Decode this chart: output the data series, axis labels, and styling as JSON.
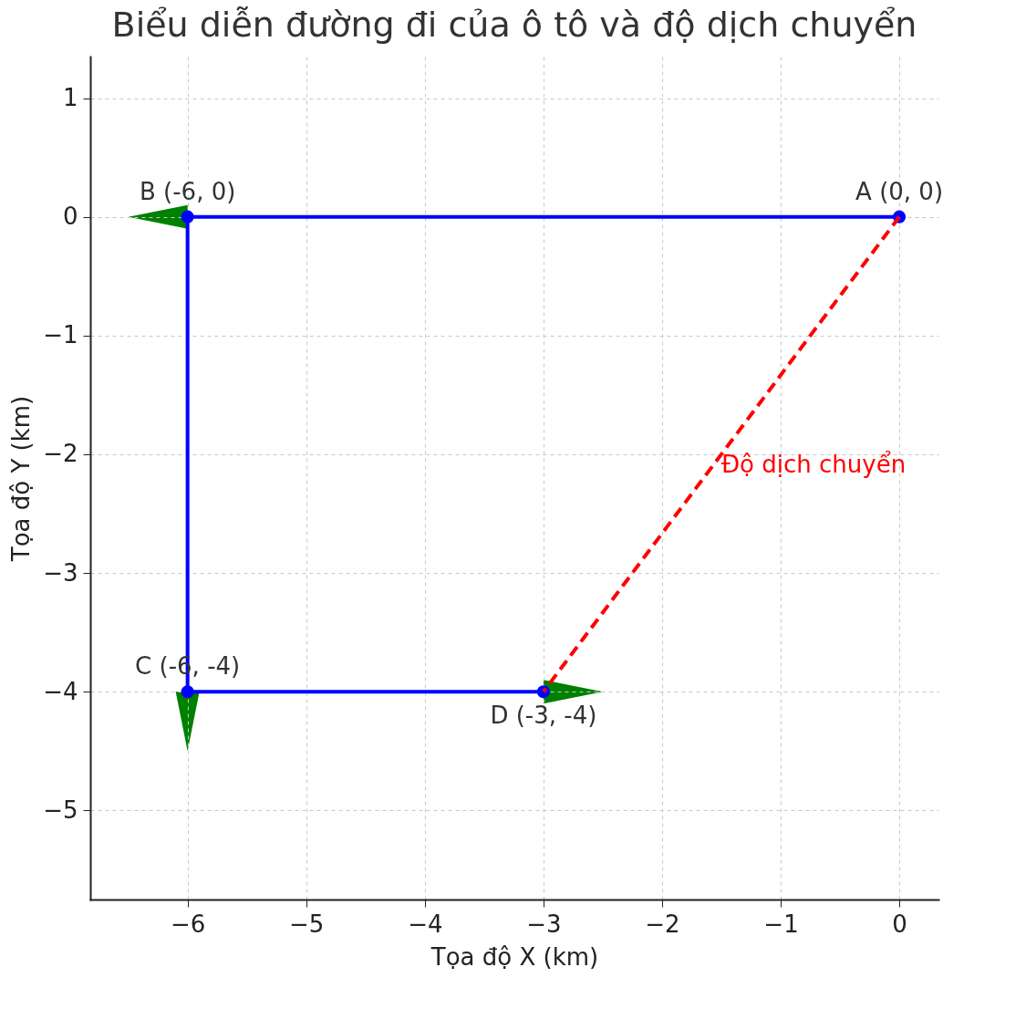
{
  "chart_data": {
    "type": "line",
    "title": "Biểu diễn đường đi của ô tô và độ dịch chuyển",
    "xlabel": "Tọa độ X (km)",
    "ylabel": "Tọa độ Y (km)",
    "series": [
      {
        "name": null,
        "color": "#0000ff",
        "x": [
          0,
          -6,
          -6,
          -3
        ],
        "values": [
          0,
          0,
          -4,
          -4
        ],
        "marker": "circle",
        "line_style": "solid"
      },
      {
        "name": "Độ dịch chuyển",
        "color": "#ff0000",
        "x": [
          0,
          -3
        ],
        "values": [
          0,
          -4
        ],
        "marker": "none",
        "line_style": "dashed"
      }
    ],
    "annotations": [
      {
        "text": "A (0, 0)",
        "x": 0,
        "y": 0
      },
      {
        "text": "B (-6, 0)",
        "x": -6,
        "y": 0
      },
      {
        "text": "C (-6, -4)",
        "x": -6,
        "y": -4
      },
      {
        "text": "D (-3, -4)",
        "x": -3,
        "y": -4
      }
    ],
    "xlim": [
      -6.82,
      0.33
    ],
    "ylim": [
      -5.75,
      1.35
    ],
    "xticks": [
      -6,
      -5,
      -4,
      -3,
      -2,
      -1,
      0
    ],
    "yticks": [
      -5,
      -4,
      -3,
      -2,
      -1,
      0,
      1
    ],
    "grid": true
  }
}
